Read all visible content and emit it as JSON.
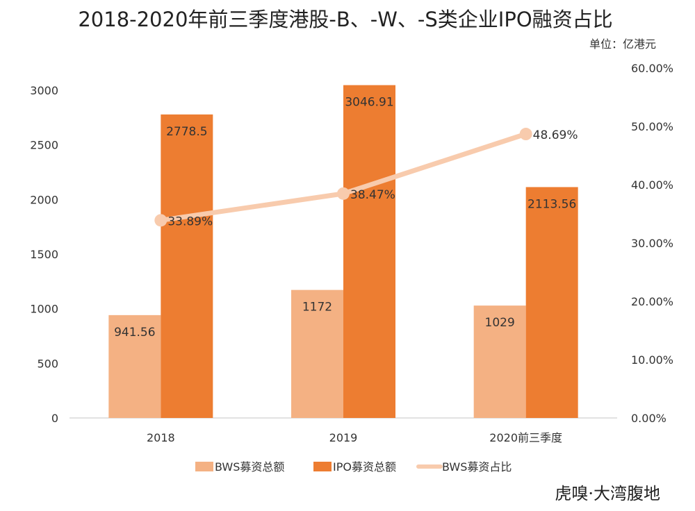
{
  "chart_data": {
    "type": "bar",
    "title": "2018-2020年前三季度港股-B、-W、-S类企业IPO融资占比",
    "unit_label": "单位：亿港元",
    "categories": [
      "2018",
      "2019",
      "2020前三季度"
    ],
    "series": [
      {
        "name": "BWS募资总额",
        "type": "bar",
        "axis": "left",
        "color": "#F4B183",
        "values": [
          941.56,
          1172,
          1029
        ],
        "labels": [
          "941.56",
          "1172",
          "1029"
        ]
      },
      {
        "name": "IPO募资总额",
        "type": "bar",
        "axis": "left",
        "color": "#ED7D31",
        "values": [
          2778.5,
          3046.91,
          2113.56
        ],
        "labels": [
          "2778.5",
          "3046.91",
          "2113.56"
        ]
      },
      {
        "name": "BWS募资占比",
        "type": "line",
        "axis": "right",
        "color": "#F8CBAD",
        "values": [
          33.89,
          38.47,
          48.69
        ],
        "labels": [
          "33.89%",
          "38.47%",
          "48.69%"
        ]
      }
    ],
    "y_left": {
      "min": 0,
      "max": 3000,
      "ticks": [
        "0",
        "500",
        "1000",
        "1500",
        "2000",
        "2500",
        "3000"
      ]
    },
    "y_right": {
      "min": 0,
      "max": 60,
      "ticks": [
        "0.00%",
        "10.00%",
        "20.00%",
        "30.00%",
        "40.00%",
        "50.00%",
        "60.00%"
      ]
    },
    "grid": false,
    "legend_position": "bottom"
  },
  "watermark": {
    "text": "虎嗅·大湾腹地"
  }
}
